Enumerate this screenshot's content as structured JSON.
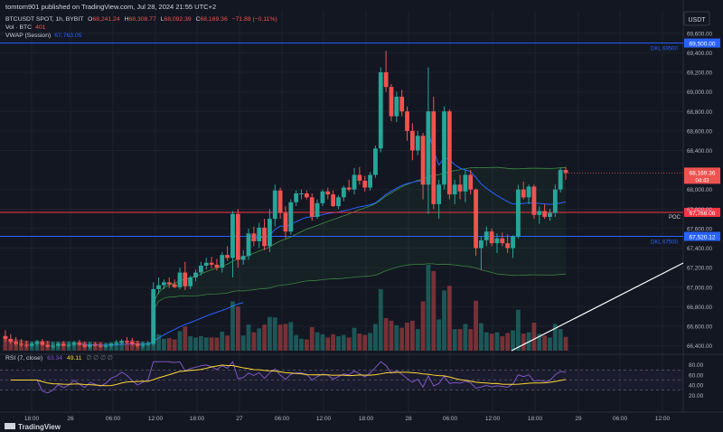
{
  "header": {
    "published": "tomtom901 published on TradingView.com, Jul 28, 2024 21:55 UTC+2",
    "symbol": "BTCUSDT SPOT, 1h, BYBIT",
    "ohlc": {
      "o_label": "O",
      "o": "68,241.24",
      "h_label": "H",
      "h": "68,308.77",
      "l_label": "L",
      "l": "68,092.39",
      "c_label": "C",
      "c": "68,169.36",
      "chg": "−71.88 (−0.11%)"
    },
    "vol_label": "Vol · BTC",
    "vol_value": "401",
    "vwap_label": "VWAP (Session)",
    "vwap_value": "67,763.05",
    "currency": "USDT"
  },
  "colors": {
    "background": "#131722",
    "up": "#26a69a",
    "down": "#ef5350",
    "dkl_line": "#2962ff",
    "poc_line": "#f23645",
    "vwap": "#2962ff",
    "band": "#4caf50",
    "rsi": "#7e57c2",
    "rsi_ma": "#fdd835",
    "trendline": "#ffffff"
  },
  "price_axis": {
    "ticks": [
      "69,600.00",
      "69,400.00",
      "69,200.00",
      "69,000.00",
      "68,800.00",
      "68,600.00",
      "68,400.00",
      "68,000.00",
      "67,800.00",
      "67,600.00",
      "67,400.00",
      "67,200.00",
      "67,000.00",
      "66,800.00",
      "66,600.00",
      "66,400.00"
    ],
    "tick_values": [
      69600,
      69400,
      69200,
      69000,
      68800,
      68600,
      68400,
      68000,
      67800,
      67600,
      67400,
      67200,
      67000,
      66800,
      66600,
      66400
    ]
  },
  "levels": [
    {
      "name": "dkl-69500",
      "price": 69500,
      "axis_label": "69,500.00",
      "text": "DKL 69500"
    },
    {
      "name": "poc",
      "price": 67766.06,
      "axis_label": "67,766.06",
      "text": "POC"
    },
    {
      "name": "dkl-67500",
      "price": 67520.12,
      "axis_label": "67,520.12",
      "text": "DKL 67500"
    }
  ],
  "last_price": {
    "value": 68169.36,
    "label": "68,169.36",
    "countdown": "04:43"
  },
  "time_axis": {
    "labels": [
      "18:00",
      "26",
      "06:00",
      "12:00",
      "18:00",
      "27",
      "06:00",
      "12:00",
      "18:00",
      "28",
      "06:00",
      "12:00",
      "18:00",
      "29",
      "06:00",
      "12:00"
    ]
  },
  "rsi": {
    "label": "RSI (7, close)",
    "value": "63.34",
    "ma_value": "49.11",
    "placeholders": "∅ ∅ ∅ ∅",
    "ticks": [
      "80.00",
      "60.00",
      "40.00",
      "20.00"
    ],
    "tick_values": [
      80,
      60,
      40,
      20
    ]
  },
  "brand": "TradingView",
  "chart_data": {
    "type": "candlestick",
    "symbol": "BTCUSDT",
    "interval": "1h",
    "ylim": [
      66350,
      69700
    ],
    "candles": [
      [
        66500,
        66560,
        66440,
        66470
      ],
      [
        66470,
        66520,
        66420,
        66440
      ],
      [
        66440,
        66490,
        66400,
        66420
      ],
      [
        66420,
        66470,
        66390,
        66410
      ],
      [
        66410,
        66450,
        66380,
        66400
      ],
      [
        66400,
        66440,
        66380,
        66420
      ],
      [
        66420,
        66460,
        66390,
        66440
      ],
      [
        66440,
        66470,
        66400,
        66410
      ],
      [
        66410,
        66450,
        66380,
        66390
      ],
      [
        66390,
        66430,
        66370,
        66400
      ],
      [
        66400,
        66440,
        66380,
        66420
      ],
      [
        66420,
        66450,
        66390,
        66400
      ],
      [
        66400,
        66440,
        66380,
        66410
      ],
      [
        66410,
        66450,
        66390,
        66430
      ],
      [
        66430,
        66460,
        66400,
        66410
      ],
      [
        66410,
        66440,
        66380,
        66390
      ],
      [
        66390,
        66430,
        66370,
        66410
      ],
      [
        66410,
        66440,
        66390,
        66400
      ],
      [
        66400,
        66430,
        66380,
        66390
      ],
      [
        66390,
        66420,
        66380,
        66400
      ],
      [
        66400,
        66430,
        66380,
        66420
      ],
      [
        66420,
        66460,
        66400,
        66430
      ],
      [
        66430,
        66470,
        66410,
        66450
      ],
      [
        66450,
        66490,
        66420,
        66440
      ],
      [
        66440,
        66480,
        66400,
        66420
      ],
      [
        66420,
        66450,
        66380,
        66400
      ],
      [
        66400,
        66440,
        66380,
        66410
      ],
      [
        66410,
        66450,
        66400,
        66420
      ],
      [
        66420,
        67050,
        66400,
        66980
      ],
      [
        66980,
        67100,
        66930,
        67020
      ],
      [
        67020,
        67080,
        66980,
        67050
      ],
      [
        67050,
        67100,
        66990,
        67030
      ],
      [
        67030,
        67080,
        66990,
        67000
      ],
      [
        67000,
        67200,
        66980,
        67150
      ],
      [
        67150,
        67260,
        66970,
        67010
      ],
      [
        67010,
        67120,
        66980,
        67100
      ],
      [
        67100,
        67180,
        67060,
        67150
      ],
      [
        67150,
        67260,
        67120,
        67220
      ],
      [
        67220,
        67300,
        67180,
        67250
      ],
      [
        67250,
        67310,
        67190,
        67230
      ],
      [
        67230,
        67290,
        67170,
        67200
      ],
      [
        67200,
        67360,
        67150,
        67330
      ],
      [
        67330,
        67420,
        67270,
        67300
      ],
      [
        67300,
        67780,
        67100,
        67750
      ],
      [
        67750,
        67800,
        67200,
        67280
      ],
      [
        67280,
        67380,
        67230,
        67320
      ],
      [
        67320,
        67600,
        67280,
        67550
      ],
      [
        67550,
        67620,
        67420,
        67470
      ],
      [
        67470,
        67660,
        67400,
        67610
      ],
      [
        67610,
        67700,
        67380,
        67420
      ],
      [
        67420,
        67800,
        67360,
        67700
      ],
      [
        67700,
        68050,
        67620,
        67990
      ],
      [
        67990,
        68020,
        67700,
        67760
      ],
      [
        67760,
        67830,
        67500,
        67570
      ],
      [
        67570,
        67900,
        67540,
        67870
      ],
      [
        67870,
        67990,
        67830,
        67960
      ],
      [
        67960,
        68000,
        67900,
        67960
      ],
      [
        67960,
        67990,
        67900,
        67920
      ],
      [
        67920,
        67960,
        67680,
        67720
      ],
      [
        67720,
        67900,
        67700,
        67860
      ],
      [
        67860,
        68000,
        67830,
        67980
      ],
      [
        67980,
        68020,
        67900,
        67950
      ],
      [
        67950,
        67990,
        67820,
        67830
      ],
      [
        67830,
        67940,
        67800,
        67920
      ],
      [
        67920,
        68040,
        67880,
        68020
      ],
      [
        68020,
        68100,
        67980,
        68000
      ],
      [
        68000,
        68220,
        67950,
        68150
      ],
      [
        68150,
        68230,
        68050,
        68090
      ],
      [
        68090,
        68140,
        67980,
        68020
      ],
      [
        68020,
        68180,
        67990,
        68150
      ],
      [
        68150,
        68450,
        68120,
        68420
      ],
      [
        68420,
        69250,
        68380,
        69200
      ],
      [
        69200,
        69420,
        69000,
        69050
      ],
      [
        69050,
        69080,
        68700,
        68750
      ],
      [
        68750,
        69000,
        68690,
        68950
      ],
      [
        68950,
        69020,
        68750,
        68800
      ],
      [
        68800,
        68850,
        68500,
        68600
      ],
      [
        68600,
        68680,
        68300,
        68400
      ],
      [
        68400,
        68600,
        68350,
        68550
      ],
      [
        68550,
        68580,
        67900,
        68050
      ],
      [
        68050,
        69250,
        67750,
        68800
      ],
      [
        68800,
        68950,
        67800,
        67850
      ],
      [
        67850,
        68100,
        67700,
        68050
      ],
      [
        68050,
        68850,
        68000,
        68800
      ],
      [
        68800,
        68820,
        67900,
        67950
      ],
      [
        67950,
        68100,
        67850,
        68050
      ],
      [
        68050,
        68150,
        67900,
        67980
      ],
      [
        67980,
        68200,
        67870,
        68150
      ],
      [
        68150,
        68200,
        67950,
        68000
      ],
      [
        68000,
        68010,
        67320,
        67400
      ],
      [
        67400,
        67520,
        67180,
        67480
      ],
      [
        67480,
        67620,
        67420,
        67570
      ],
      [
        67570,
        67600,
        67420,
        67450
      ],
      [
        67450,
        67550,
        67350,
        67500
      ],
      [
        67500,
        67560,
        67420,
        67450
      ],
      [
        67450,
        67540,
        67350,
        67400
      ],
      [
        67400,
        67530,
        67300,
        67520
      ],
      [
        67520,
        68050,
        67500,
        68000
      ],
      [
        68000,
        68080,
        67900,
        67920
      ],
      [
        67920,
        68050,
        67850,
        68030
      ],
      [
        68030,
        68050,
        67700,
        67740
      ],
      [
        67740,
        67830,
        67650,
        67780
      ],
      [
        67780,
        67850,
        67700,
        67720
      ],
      [
        67720,
        67800,
        67680,
        67760
      ],
      [
        67760,
        68050,
        67720,
        68000
      ],
      [
        68000,
        68220,
        67970,
        68200
      ],
      [
        68200,
        68230,
        68100,
        68169
      ]
    ]
  }
}
